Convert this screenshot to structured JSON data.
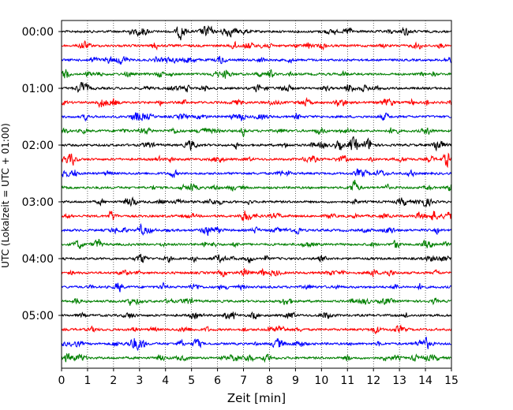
{
  "chart_data": {
    "type": "line",
    "title": "",
    "xlabel": "Zeit  [min]",
    "ylabel": "UTC (Lokalzeit = UTC + 01:00)",
    "xlim": [
      0,
      15
    ],
    "x_ticks": [
      "0",
      "1",
      "2",
      "3",
      "4",
      "5",
      "6",
      "7",
      "8",
      "9",
      "10",
      "11",
      "12",
      "13",
      "14",
      "15"
    ],
    "y_tick_labels": [
      "00:00",
      "01:00",
      "02:00",
      "03:00",
      "04:00",
      "05:00"
    ],
    "rows_per_hour": 4,
    "minutes_per_row": 15,
    "row_count": 24,
    "row_start_times": [
      "00:00",
      "00:15",
      "00:30",
      "00:45",
      "01:00",
      "01:15",
      "01:30",
      "01:45",
      "02:00",
      "02:15",
      "02:30",
      "02:45",
      "03:00",
      "03:15",
      "03:30",
      "03:45",
      "04:00",
      "04:15",
      "04:30",
      "04:45",
      "05:00",
      "05:15",
      "05:30",
      "05:45"
    ],
    "trace_colors": [
      "#000000",
      "#ff0000",
      "#0000ff",
      "#008000"
    ],
    "vertical_grid": true,
    "grid_style": "dotted",
    "signal": "seismogram (helicorder), continuous noise"
  }
}
